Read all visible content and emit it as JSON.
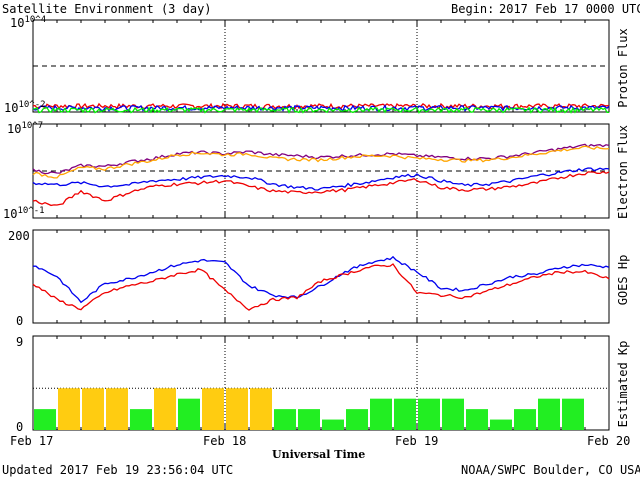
{
  "header": {
    "title": "Satellite Environment (3 day)",
    "begin_label": "Begin:",
    "begin_value": "2017 Feb 17 0000 UTC"
  },
  "footer": {
    "updated": "Updated 2017 Feb 19 23:56:04 UTC",
    "credit": "NOAA/SWPC Boulder, CO USA",
    "xlabel": "Universal Time"
  },
  "x_ticks": [
    "Feb 17",
    "Feb 18",
    "Feb 19",
    "Feb 20"
  ],
  "colors": {
    "red": "#ee0000",
    "blue": "#0000ee",
    "green": "#00ee00",
    "purple": "#800080",
    "orange": "#ffa500",
    "kp_green": "#22ee22",
    "kp_yellow": "#ffcc11"
  },
  "chart_data": [
    {
      "type": "line",
      "title": "Proton Flux",
      "ylabel": "Proton Flux",
      "yscale": "log",
      "ylim": [
        0.01,
        10000
      ],
      "y_tick_labels": [
        "10^4",
        "10^-2"
      ],
      "threshold": 10,
      "series": [
        {
          "color": "red",
          "level": 0.025
        },
        {
          "color": "blue",
          "level": 0.019
        },
        {
          "color": "green",
          "level": 0.014
        }
      ]
    },
    {
      "type": "line",
      "title": "Electron Flux",
      "ylabel": "Electron Flux",
      "yscale": "log",
      "ylim": [
        0.1,
        10000000
      ],
      "y_tick_labels": [
        "10^7",
        "10^-1"
      ],
      "threshold": 1000,
      "x": [
        0,
        3,
        6,
        9,
        12,
        15,
        18,
        21,
        24,
        27,
        30,
        33,
        36,
        39,
        42,
        45,
        48,
        51,
        54,
        57,
        60,
        63,
        66,
        69,
        72
      ],
      "series": [
        {
          "color": "purple",
          "values": [
            1200,
            600,
            3000,
            2500,
            6000,
            12000,
            30000,
            40000,
            30000,
            45000,
            25000,
            20000,
            15000,
            20000,
            25000,
            30000,
            20000,
            15000,
            12000,
            12000,
            20000,
            40000,
            80000,
            150000,
            150000
          ]
        },
        {
          "color": "orange",
          "values": [
            700,
            300,
            2000,
            1500,
            4000,
            8000,
            25000,
            35000,
            25000,
            30000,
            12000,
            10000,
            9000,
            15000,
            20000,
            20000,
            12000,
            10000,
            8000,
            9000,
            15000,
            30000,
            60000,
            100000,
            80000
          ]
        },
        {
          "color": "blue",
          "values": [
            100,
            70,
            100,
            50,
            70,
            150,
            200,
            300,
            400,
            300,
            80,
            40,
            30,
            60,
            120,
            300,
            500,
            150,
            60,
            80,
            150,
            400,
            800,
            1500,
            1500
          ]
        },
        {
          "color": "red",
          "values": [
            3,
            1,
            20,
            3,
            15,
            50,
            80,
            100,
            150,
            50,
            20,
            15,
            18,
            25,
            50,
            100,
            200,
            40,
            25,
            30,
            50,
            100,
            300,
            700,
            800
          ]
        }
      ]
    },
    {
      "type": "line",
      "title": "GOES Hp",
      "ylabel": "GOES Hp",
      "ylim": [
        0,
        200
      ],
      "y_tick_labels": [
        "200",
        "0"
      ],
      "x": [
        0,
        3,
        6,
        9,
        12,
        15,
        18,
        21,
        24,
        27,
        30,
        33,
        36,
        39,
        42,
        45,
        48,
        51,
        54,
        57,
        60,
        63,
        66,
        69,
        72
      ],
      "series": [
        {
          "color": "blue",
          "values": [
            125,
            100,
            45,
            85,
            95,
            110,
            125,
            135,
            130,
            80,
            60,
            55,
            80,
            110,
            130,
            140,
            110,
            75,
            70,
            85,
            100,
            105,
            120,
            125,
            120
          ]
        },
        {
          "color": "red",
          "values": [
            85,
            50,
            30,
            65,
            80,
            90,
            105,
            115,
            70,
            30,
            50,
            55,
            90,
            105,
            120,
            125,
            65,
            60,
            55,
            70,
            85,
            100,
            110,
            110,
            95
          ]
        }
      ]
    },
    {
      "type": "bar",
      "title": "Estimated Kp",
      "ylabel": "Estimated Kp",
      "ylim": [
        0,
        9
      ],
      "y_tick_labels": [
        "9",
        "0"
      ],
      "dotted_levels": [
        4,
        9
      ],
      "threshold_color": "kp_yellow",
      "values": [
        2,
        4,
        4,
        4,
        2,
        4,
        3,
        4,
        4,
        4,
        2,
        2,
        1,
        2,
        3,
        3,
        3,
        3,
        2,
        1,
        2,
        3,
        3,
        0
      ]
    }
  ]
}
